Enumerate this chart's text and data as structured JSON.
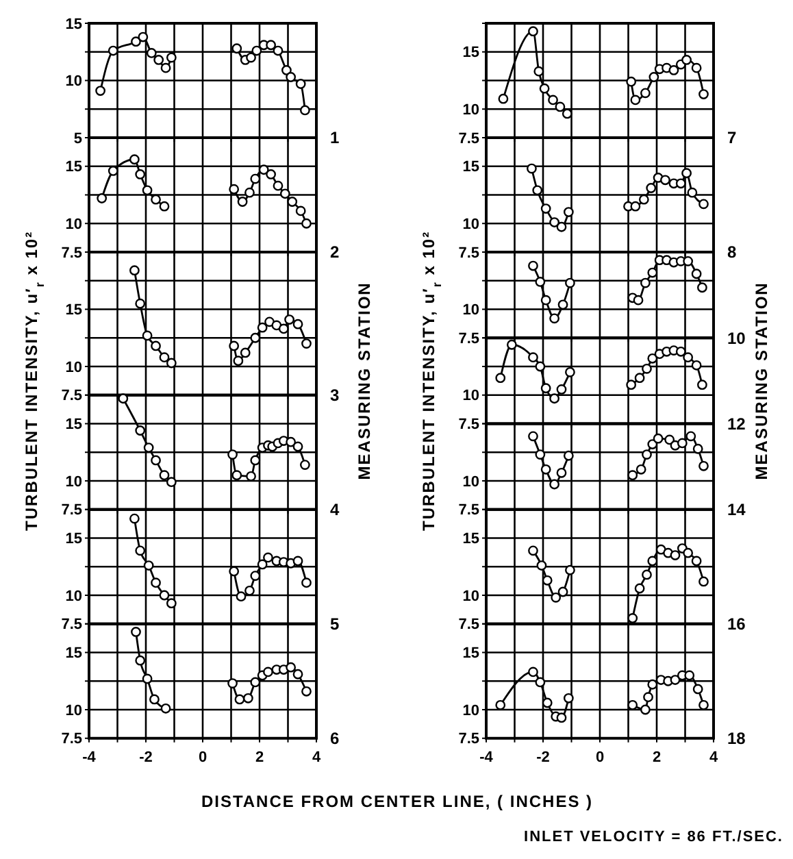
{
  "chart_data": [
    {
      "type": "line",
      "ylabel": "TURBULENT INTENSITY, u′$_{r}$ x 10²",
      "y2label": "MEASURING STATION",
      "annotations": [
        "1"
      ],
      "xlim": [
        -4,
        4
      ],
      "xticks": [
        -4,
        {
          "value": -3,
          "label": null
        },
        -2,
        {
          "value": -1,
          "label": null
        },
        0,
        {
          "value": 1,
          "label": null
        },
        2,
        {
          "value": 3,
          "label": null
        },
        4
      ],
      "ylim": [
        5,
        15
      ],
      "yticks": [
        5,
        {
          "value": 7.5,
          "label": null
        },
        10,
        {
          "value": 12.5,
          "label": null
        },
        15
      ],
      "grid": true,
      "tick_labels": "y",
      "marker": "circle",
      "line_style": "solid",
      "series": [
        {
          "color": "#000000",
          "x": [
            -3.6,
            -3.15,
            -2.35,
            -2.1,
            -1.8,
            -1.55,
            -1.3,
            -1.1
          ],
          "values": [
            9.1,
            12.6,
            13.4,
            13.8,
            12.4,
            11.8,
            11.1,
            12.0
          ]
        },
        {
          "color": "#000000",
          "x": [
            1.2,
            1.5,
            1.7,
            1.9,
            2.15,
            2.4,
            2.65,
            2.95,
            3.1,
            3.45,
            3.6
          ],
          "values": [
            12.8,
            11.8,
            12.0,
            12.6,
            13.1,
            13.1,
            12.6,
            10.9,
            10.3,
            9.7,
            7.4
          ]
        }
      ]
    },
    {
      "type": "line",
      "annotations": [
        "2"
      ],
      "xlim": [
        -4,
        4
      ],
      "xticks": [
        -4,
        {
          "value": -3,
          "label": null
        },
        -2,
        {
          "value": -1,
          "label": null
        },
        0,
        {
          "value": 1,
          "label": null
        },
        2,
        {
          "value": 3,
          "label": null
        },
        4
      ],
      "ylim": [
        7.5,
        17.5
      ],
      "yticks": [
        7.5,
        10,
        {
          "value": 12.5,
          "label": null
        },
        15,
        {
          "value": 17.5,
          "label": null
        }
      ],
      "grid": true,
      "tick_labels": "y",
      "marker": "circle",
      "line_style": "solid",
      "series": [
        {
          "color": "#000000",
          "x": [
            -3.55,
            -3.15,
            -2.4,
            -2.2,
            -1.95,
            -1.65,
            -1.35
          ],
          "values": [
            12.2,
            14.6,
            15.6,
            14.3,
            12.9,
            12.1,
            11.5
          ]
        },
        {
          "color": "#000000",
          "x": [
            1.1,
            1.4,
            1.65,
            1.85,
            2.15,
            2.4,
            2.65,
            2.9,
            3.15,
            3.45,
            3.65
          ],
          "values": [
            13.0,
            11.9,
            12.7,
            13.9,
            14.7,
            14.3,
            13.3,
            12.6,
            11.9,
            11.1,
            10.0
          ]
        }
      ]
    },
    {
      "type": "line",
      "annotations": [
        "3"
      ],
      "xlim": [
        -4,
        4
      ],
      "xticks": [
        -4,
        {
          "value": -3,
          "label": null
        },
        -2,
        {
          "value": -1,
          "label": null
        },
        0,
        {
          "value": 1,
          "label": null
        },
        2,
        {
          "value": 3,
          "label": null
        },
        4
      ],
      "ylim": [
        7.5,
        20
      ],
      "yticks": [
        7.5,
        10,
        {
          "value": 12.5,
          "label": null
        },
        15,
        {
          "value": 17.5,
          "label": null
        },
        {
          "value": 20,
          "label": null
        }
      ],
      "grid": true,
      "tick_labels": "y",
      "marker": "circle",
      "line_style": "solid",
      "series": [
        {
          "color": "#000000",
          "x": [
            -2.4,
            -2.2,
            -1.95,
            -1.65,
            -1.35,
            -1.1
          ],
          "values": [
            18.4,
            15.5,
            12.7,
            11.8,
            10.8,
            10.3
          ]
        },
        {
          "color": "#000000",
          "x": [
            1.1,
            1.25,
            1.5,
            1.85,
            2.1,
            2.35,
            2.6,
            2.85,
            3.05,
            3.35,
            3.65
          ],
          "values": [
            11.8,
            10.5,
            11.2,
            12.5,
            13.4,
            13.9,
            13.6,
            13.3,
            14.1,
            13.7,
            12.0
          ]
        }
      ]
    },
    {
      "type": "line",
      "annotations": [
        "4"
      ],
      "xlim": [
        -4,
        4
      ],
      "xticks": [
        -4,
        {
          "value": -3,
          "label": null
        },
        -2,
        {
          "value": -1,
          "label": null
        },
        0,
        {
          "value": 1,
          "label": null
        },
        2,
        {
          "value": 3,
          "label": null
        },
        4
      ],
      "ylim": [
        7.5,
        17.5
      ],
      "yticks": [
        7.5,
        10,
        {
          "value": 12.5,
          "label": null
        },
        15,
        {
          "value": 17.5,
          "label": null
        }
      ],
      "grid": true,
      "tick_labels": "y",
      "marker": "circle",
      "line_style": "solid",
      "series": [
        {
          "color": "#000000",
          "x": [
            -2.8,
            -2.2,
            -1.9,
            -1.65,
            -1.35,
            -1.1
          ],
          "values": [
            17.2,
            14.4,
            12.9,
            11.8,
            10.5,
            9.9
          ]
        },
        {
          "color": "#000000",
          "x": [
            1.05,
            1.2,
            1.7,
            1.85,
            2.1,
            2.3,
            2.45,
            2.65,
            2.85,
            3.1,
            3.35,
            3.6
          ],
          "values": [
            12.3,
            10.5,
            10.4,
            11.8,
            12.9,
            13.1,
            13.0,
            13.3,
            13.5,
            13.4,
            13.0,
            11.4
          ]
        }
      ]
    },
    {
      "type": "line",
      "annotations": [
        "5"
      ],
      "xlim": [
        -4,
        4
      ],
      "xticks": [
        -4,
        {
          "value": -3,
          "label": null
        },
        -2,
        {
          "value": -1,
          "label": null
        },
        0,
        {
          "value": 1,
          "label": null
        },
        2,
        {
          "value": 3,
          "label": null
        },
        4
      ],
      "ylim": [
        7.5,
        17.5
      ],
      "yticks": [
        7.5,
        10,
        {
          "value": 12.5,
          "label": null
        },
        15,
        {
          "value": 17.5,
          "label": null
        }
      ],
      "grid": true,
      "tick_labels": "y",
      "marker": "circle",
      "line_style": "solid",
      "series": [
        {
          "color": "#000000",
          "x": [
            -2.4,
            -2.2,
            -1.9,
            -1.65,
            -1.35,
            -1.1
          ],
          "values": [
            16.7,
            13.9,
            12.6,
            11.1,
            10.0,
            9.3
          ]
        },
        {
          "color": "#000000",
          "x": [
            1.1,
            1.35,
            1.65,
            1.85,
            2.1,
            2.3,
            2.6,
            2.85,
            3.1,
            3.35,
            3.65
          ],
          "values": [
            12.1,
            9.9,
            10.4,
            11.7,
            12.7,
            13.3,
            13.0,
            12.9,
            12.8,
            13.0,
            11.1
          ]
        }
      ]
    },
    {
      "type": "line",
      "xlabel": "DISTANCE FROM CENTER LINE, ( INCHES )",
      "annotations": [
        "6"
      ],
      "xlim": [
        -4,
        4
      ],
      "xticks": [
        -4,
        {
          "value": -3,
          "label": null
        },
        -2,
        {
          "value": -1,
          "label": null
        },
        0,
        {
          "value": 1,
          "label": null
        },
        2,
        {
          "value": 3,
          "label": null
        },
        4
      ],
      "ylim": [
        7.5,
        17.5
      ],
      "yticks": [
        7.5,
        10,
        {
          "value": 12.5,
          "label": null
        },
        15,
        {
          "value": 17.5,
          "label": null
        }
      ],
      "grid": true,
      "marker": "circle",
      "line_style": "solid",
      "series": [
        {
          "color": "#000000",
          "x": [
            -2.35,
            -2.2,
            -1.95,
            -1.7,
            -1.3
          ],
          "values": [
            16.8,
            14.3,
            12.7,
            10.9,
            10.1
          ]
        },
        {
          "color": "#000000",
          "x": [
            1.05,
            1.3,
            1.6,
            1.85,
            2.1,
            2.3,
            2.6,
            2.85,
            3.1,
            3.35,
            3.65
          ],
          "values": [
            12.3,
            10.9,
            11.0,
            12.4,
            13.0,
            13.3,
            13.5,
            13.5,
            13.7,
            13.1,
            11.6
          ]
        }
      ]
    },
    {
      "type": "line",
      "ylabel": "TURBULENT INTENSITY, u′$_{r}$ x 10²",
      "y2label": "MEASURING STATION",
      "annotations": [
        "7"
      ],
      "xlim": [
        -4,
        4
      ],
      "xticks": [
        -4,
        {
          "value": -3,
          "label": null
        },
        -2,
        {
          "value": -1,
          "label": null
        },
        0,
        {
          "value": 1,
          "label": null
        },
        2,
        {
          "value": 3,
          "label": null
        },
        4
      ],
      "ylim": [
        7.5,
        17.5
      ],
      "yticks": [
        7.5,
        10,
        {
          "value": 12.5,
          "label": null
        },
        15,
        {
          "value": 17.5,
          "label": null
        }
      ],
      "grid": true,
      "tick_labels": "y",
      "marker": "circle",
      "line_style": "solid",
      "series": [
        {
          "color": "#000000",
          "x": [
            -3.4,
            -2.35,
            -2.15,
            -1.95,
            -1.65,
            -1.4,
            -1.15
          ],
          "values": [
            10.9,
            16.8,
            13.3,
            11.8,
            10.8,
            10.2,
            9.6
          ]
        },
        {
          "color": "#000000",
          "x": [
            1.1,
            1.25,
            1.6,
            1.9,
            2.1,
            2.35,
            2.6,
            2.85,
            3.05,
            3.4,
            3.65
          ],
          "values": [
            12.4,
            10.8,
            11.4,
            12.8,
            13.5,
            13.6,
            13.4,
            13.9,
            14.3,
            13.6,
            11.3
          ]
        }
      ]
    },
    {
      "type": "line",
      "annotations": [
        "8"
      ],
      "xlim": [
        -4,
        4
      ],
      "xticks": [
        -4,
        {
          "value": -3,
          "label": null
        },
        -2,
        {
          "value": -1,
          "label": null
        },
        0,
        {
          "value": 1,
          "label": null
        },
        2,
        {
          "value": 3,
          "label": null
        },
        4
      ],
      "ylim": [
        7.5,
        17.5
      ],
      "yticks": [
        7.5,
        10,
        {
          "value": 12.5,
          "label": null
        },
        15,
        {
          "value": 17.5,
          "label": null
        }
      ],
      "grid": true,
      "tick_labels": "y",
      "marker": "circle",
      "line_style": "solid",
      "series": [
        {
          "color": "#000000",
          "x": [
            -2.4,
            -2.2,
            -1.9,
            -1.6,
            -1.35,
            -1.1
          ],
          "values": [
            14.8,
            12.9,
            11.3,
            10.1,
            9.7,
            11.0
          ]
        },
        {
          "color": "#000000",
          "x": [
            1.0,
            1.25,
            1.55,
            1.8,
            2.05,
            2.3,
            2.6,
            2.85,
            3.05,
            3.25,
            3.65
          ],
          "values": [
            11.5,
            11.5,
            12.1,
            13.1,
            14.0,
            13.8,
            13.5,
            13.5,
            14.4,
            12.7,
            11.7
          ]
        }
      ]
    },
    {
      "type": "line",
      "annotations": [
        "10"
      ],
      "xlim": [
        -4,
        4
      ],
      "xticks": [
        -4,
        {
          "value": -3,
          "label": null
        },
        -2,
        {
          "value": -1,
          "label": null
        },
        0,
        {
          "value": 1,
          "label": null
        },
        2,
        {
          "value": 3,
          "label": null
        },
        4
      ],
      "ylim": [
        7.5,
        15
      ],
      "yticks": [
        7.5,
        10,
        {
          "value": 12.5,
          "label": null
        },
        {
          "value": 15,
          "label": null
        }
      ],
      "grid": true,
      "tick_labels": "y",
      "marker": "circle",
      "line_style": "solid",
      "series": [
        {
          "color": "#000000",
          "x": [
            -2.35,
            -2.1,
            -1.9,
            -1.6,
            -1.3,
            -1.05
          ],
          "values": [
            13.8,
            12.4,
            10.8,
            9.2,
            10.4,
            12.3
          ]
        },
        {
          "color": "#000000",
          "x": [
            1.15,
            1.35,
            1.6,
            1.85,
            2.1,
            2.35,
            2.6,
            2.85,
            3.1,
            3.4,
            3.6
          ],
          "values": [
            11.0,
            10.8,
            12.3,
            13.2,
            14.3,
            14.3,
            14.1,
            14.2,
            14.2,
            13.1,
            11.9
          ]
        }
      ]
    },
    {
      "type": "line",
      "annotations": [
        "12"
      ],
      "xlim": [
        -4,
        4
      ],
      "xticks": [
        -4,
        {
          "value": -3,
          "label": null
        },
        -2,
        {
          "value": -1,
          "label": null
        },
        0,
        {
          "value": 1,
          "label": null
        },
        2,
        {
          "value": 3,
          "label": null
        },
        4
      ],
      "ylim": [
        7.5,
        15
      ],
      "yticks": [
        7.5,
        10,
        {
          "value": 12.5,
          "label": null
        },
        {
          "value": 15,
          "label": null
        }
      ],
      "grid": true,
      "tick_labels": "y",
      "marker": "circle",
      "line_style": "solid",
      "series": [
        {
          "color": "#000000",
          "x": [
            -3.5,
            -3.1,
            -2.35,
            -2.1,
            -1.9,
            -1.6,
            -1.35,
            -1.05
          ],
          "values": [
            11.5,
            14.4,
            13.3,
            12.5,
            10.6,
            9.7,
            10.5,
            12.0
          ]
        },
        {
          "color": "#000000",
          "x": [
            1.1,
            1.4,
            1.65,
            1.85,
            2.1,
            2.35,
            2.6,
            2.85,
            3.1,
            3.4,
            3.6
          ],
          "values": [
            10.9,
            11.5,
            12.3,
            13.2,
            13.6,
            13.8,
            13.9,
            13.8,
            13.3,
            12.6,
            10.9
          ]
        }
      ]
    },
    {
      "type": "line",
      "annotations": [
        "14"
      ],
      "xlim": [
        -4,
        4
      ],
      "xticks": [
        -4,
        {
          "value": -3,
          "label": null
        },
        -2,
        {
          "value": -1,
          "label": null
        },
        0,
        {
          "value": 1,
          "label": null
        },
        2,
        {
          "value": 3,
          "label": null
        },
        4
      ],
      "ylim": [
        7.5,
        15
      ],
      "yticks": [
        7.5,
        10,
        {
          "value": 12.5,
          "label": null
        },
        {
          "value": 15,
          "label": null
        }
      ],
      "grid": true,
      "tick_labels": "y",
      "marker": "circle",
      "line_style": "solid",
      "series": [
        {
          "color": "#000000",
          "x": [
            -2.35,
            -2.1,
            -1.9,
            -1.6,
            -1.35,
            -1.1
          ],
          "values": [
            13.9,
            12.3,
            11.0,
            9.7,
            10.7,
            12.2
          ]
        },
        {
          "color": "#000000",
          "x": [
            1.15,
            1.45,
            1.65,
            1.85,
            2.05,
            2.45,
            2.65,
            2.9,
            3.2,
            3.45,
            3.65
          ],
          "values": [
            10.5,
            11.0,
            12.3,
            13.2,
            13.7,
            13.6,
            13.1,
            13.3,
            13.9,
            12.8,
            11.3
          ]
        }
      ]
    },
    {
      "type": "line",
      "annotations": [
        "16"
      ],
      "xlim": [
        -4,
        4
      ],
      "xticks": [
        -4,
        {
          "value": -3,
          "label": null
        },
        -2,
        {
          "value": -1,
          "label": null
        },
        0,
        {
          "value": 1,
          "label": null
        },
        2,
        {
          "value": 3,
          "label": null
        },
        4
      ],
      "ylim": [
        7.5,
        17.5
      ],
      "yticks": [
        7.5,
        10,
        {
          "value": 12.5,
          "label": null
        },
        15,
        {
          "value": 17.5,
          "label": null
        }
      ],
      "grid": true,
      "tick_labels": "y",
      "marker": "circle",
      "line_style": "solid",
      "series": [
        {
          "color": "#000000",
          "x": [
            -2.35,
            -2.05,
            -1.85,
            -1.55,
            -1.3,
            -1.05
          ],
          "values": [
            13.9,
            12.6,
            11.3,
            9.8,
            10.3,
            12.2
          ]
        },
        {
          "color": "#000000",
          "x": [
            1.15,
            1.4,
            1.65,
            1.85,
            2.15,
            2.4,
            2.65,
            2.9,
            3.1,
            3.4,
            3.65
          ],
          "values": [
            8.0,
            10.6,
            11.8,
            13.0,
            14.0,
            13.7,
            13.5,
            14.1,
            13.7,
            13.0,
            11.2
          ]
        }
      ]
    },
    {
      "type": "line",
      "annotations": [
        "18",
        "INLET VELOCITY = 86 FT./SEC."
      ],
      "xlim": [
        -4,
        4
      ],
      "xticks": [
        -4,
        {
          "value": -3,
          "label": null
        },
        -2,
        {
          "value": -1,
          "label": null
        },
        0,
        {
          "value": 1,
          "label": null
        },
        2,
        {
          "value": 3,
          "label": null
        },
        4
      ],
      "ylim": [
        7.5,
        17.5
      ],
      "yticks": [
        7.5,
        10,
        {
          "value": 12.5,
          "label": null
        },
        15,
        {
          "value": 17.5,
          "label": null
        }
      ],
      "grid": true,
      "marker": "circle",
      "line_style": "solid",
      "series": [
        {
          "color": "#000000",
          "x": [
            -3.5,
            -2.35,
            -2.1,
            -1.85,
            -1.55,
            -1.35,
            -1.1
          ],
          "values": [
            10.4,
            13.3,
            12.4,
            10.6,
            9.4,
            9.3,
            11.0
          ]
        },
        {
          "color": "#000000",
          "x": [
            1.15,
            1.6,
            1.7,
            1.85,
            2.15,
            2.4,
            2.65,
            2.9,
            3.15,
            3.45,
            3.65
          ],
          "values": [
            10.4,
            10.0,
            11.1,
            12.2,
            12.6,
            12.5,
            12.6,
            13.0,
            13.0,
            11.8,
            10.4
          ]
        }
      ]
    }
  ]
}
